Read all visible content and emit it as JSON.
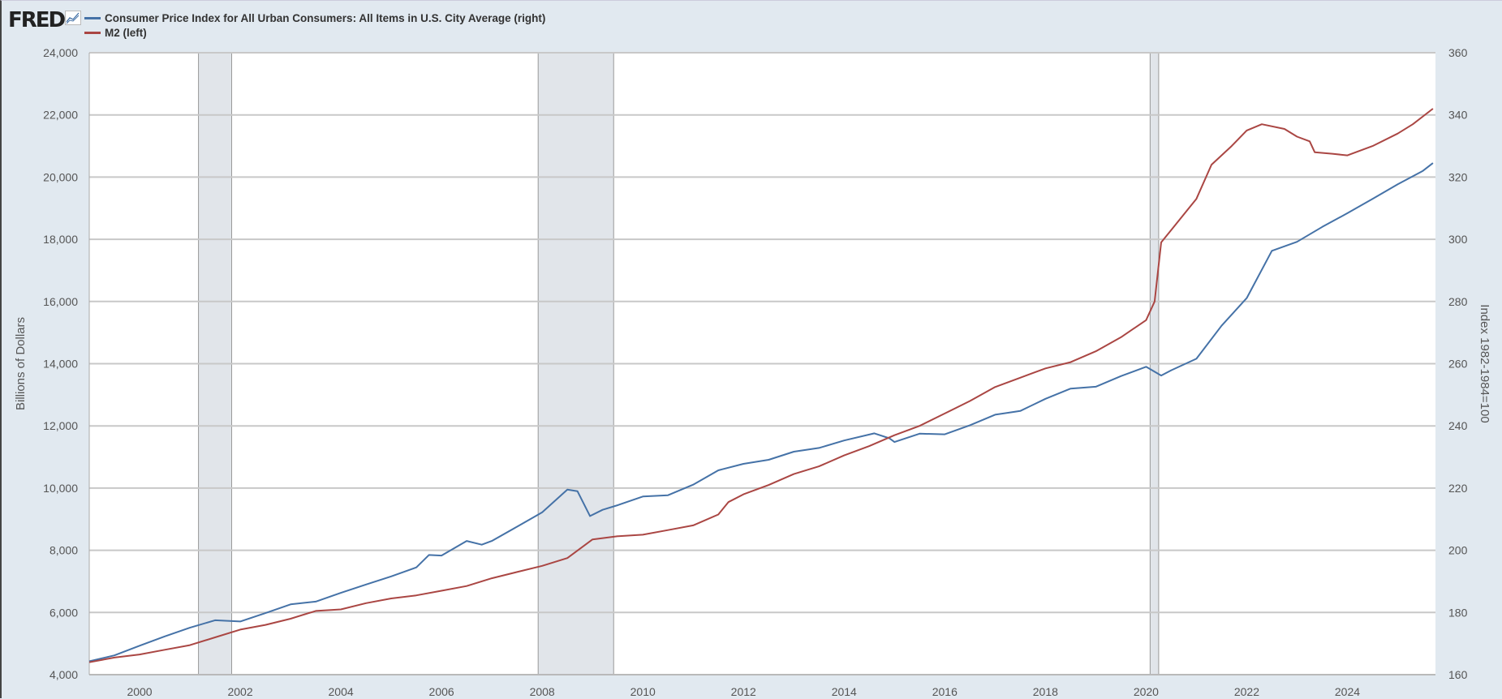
{
  "logo": "FRED",
  "chart_data": {
    "type": "line",
    "title": "",
    "legend_position": "top-left",
    "grid": true,
    "xlim": [
      1999.0,
      2025.75
    ],
    "x_ticks": [
      "2000",
      "2002",
      "2004",
      "2006",
      "2008",
      "2010",
      "2012",
      "2014",
      "2016",
      "2018",
      "2020",
      "2022",
      "2024"
    ],
    "left_axis": {
      "label": "Billions of Dollars",
      "ylim": [
        4000,
        24000
      ],
      "ticks": [
        "4,000",
        "6,000",
        "8,000",
        "10,000",
        "12,000",
        "14,000",
        "16,000",
        "18,000",
        "20,000",
        "22,000",
        "24,000"
      ]
    },
    "right_axis": {
      "label": "Index 1982-1984=100",
      "ylim": [
        160,
        360
      ],
      "ticks": [
        "160",
        "180",
        "200",
        "220",
        "240",
        "260",
        "280",
        "300",
        "320",
        "340",
        "360"
      ]
    },
    "recessions": [
      [
        2001.17,
        2001.83
      ],
      [
        2007.92,
        2009.42
      ],
      [
        2020.08,
        2020.25
      ]
    ],
    "series": [
      {
        "name": "Consumer Price Index for All Urban Consumers: All Items in U.S. City Average (right)",
        "axis": "right",
        "color": "#4572a7",
        "x": [
          1999.0,
          1999.5,
          2000.0,
          2000.5,
          2001.0,
          2001.5,
          2002.0,
          2002.5,
          2003.0,
          2003.5,
          2004.0,
          2004.5,
          2005.0,
          2005.5,
          2005.75,
          2006.0,
          2006.5,
          2006.8,
          2007.0,
          2007.5,
          2008.0,
          2008.5,
          2008.7,
          2008.95,
          2009.2,
          2009.5,
          2010.0,
          2010.5,
          2011.0,
          2011.5,
          2012.0,
          2012.5,
          2013.0,
          2013.5,
          2014.0,
          2014.6,
          2014.9,
          2015.0,
          2015.5,
          2016.0,
          2016.5,
          2017.0,
          2017.5,
          2018.0,
          2018.5,
          2019.0,
          2019.5,
          2020.0,
          2020.3,
          2020.5,
          2021.0,
          2021.5,
          2022.0,
          2022.5,
          2023.0,
          2023.5,
          2024.0,
          2024.5,
          2025.0,
          2025.5,
          2025.7
        ],
        "values": [
          164.3,
          166.2,
          169.3,
          172.3,
          175.1,
          177.5,
          177.1,
          179.8,
          182.6,
          183.5,
          186.3,
          189.0,
          191.6,
          194.5,
          198.5,
          198.3,
          203.0,
          201.8,
          203.0,
          207.6,
          212.2,
          219.5,
          219.0,
          211.0,
          213.0,
          214.5,
          217.3,
          217.7,
          221.1,
          225.7,
          227.8,
          229.1,
          231.7,
          232.9,
          235.3,
          237.6,
          236.0,
          234.8,
          237.5,
          237.3,
          240.2,
          243.6,
          244.8,
          248.7,
          252.0,
          252.6,
          256.0,
          259.0,
          256.2,
          257.9,
          261.6,
          272.2,
          281.1,
          296.3,
          299.2,
          304.0,
          308.4,
          313.0,
          317.7,
          322.0,
          324.5
        ]
      },
      {
        "name": "M2 (left)",
        "axis": "left",
        "color": "#aa4643",
        "x": [
          1999.0,
          1999.5,
          2000.0,
          2000.5,
          2001.0,
          2001.5,
          2002.0,
          2002.5,
          2003.0,
          2003.5,
          2004.0,
          2004.5,
          2005.0,
          2005.5,
          2006.0,
          2006.5,
          2007.0,
          2007.5,
          2008.0,
          2008.5,
          2009.0,
          2009.5,
          2010.0,
          2010.5,
          2011.0,
          2011.5,
          2011.7,
          2012.0,
          2012.5,
          2013.0,
          2013.5,
          2014.0,
          2014.5,
          2015.0,
          2015.5,
          2016.0,
          2016.5,
          2017.0,
          2017.5,
          2018.0,
          2018.5,
          2019.0,
          2019.5,
          2020.0,
          2020.17,
          2020.3,
          2020.5,
          2021.0,
          2021.3,
          2021.7,
          2022.0,
          2022.3,
          2022.75,
          2023.0,
          2023.25,
          2023.35,
          2023.7,
          2024.0,
          2024.5,
          2025.0,
          2025.3,
          2025.7
        ],
        "values": [
          4400,
          4550,
          4650,
          4800,
          4950,
          5200,
          5450,
          5600,
          5800,
          6050,
          6100,
          6300,
          6450,
          6550,
          6700,
          6850,
          7100,
          7300,
          7500,
          7750,
          8350,
          8450,
          8500,
          8650,
          8800,
          9150,
          9550,
          9800,
          10100,
          10450,
          10700,
          11050,
          11350,
          11700,
          12000,
          12400,
          12800,
          13250,
          13550,
          13850,
          14050,
          14400,
          14850,
          15400,
          16000,
          17900,
          18300,
          19300,
          20400,
          21000,
          21500,
          21700,
          21550,
          21300,
          21150,
          20800,
          20750,
          20700,
          21000,
          21400,
          21700,
          22200
        ]
      }
    ]
  }
}
